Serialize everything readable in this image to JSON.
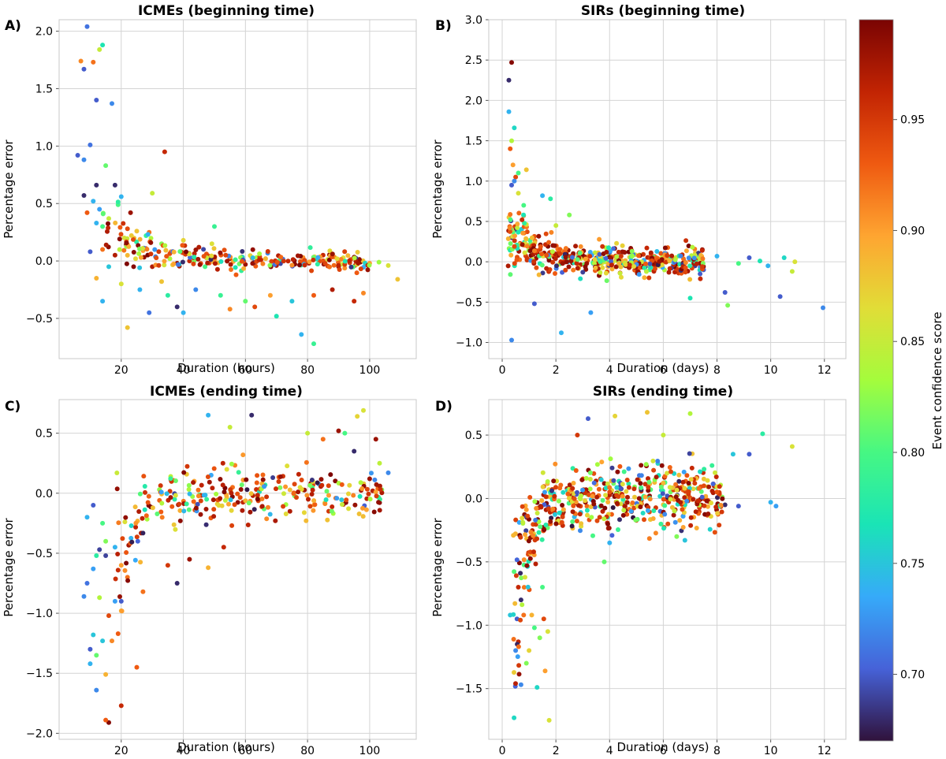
{
  "colorbar": {
    "label": "Event confidence score",
    "min": 0.67,
    "max": 0.995,
    "ticks": [
      0.7,
      0.75,
      0.8,
      0.85,
      0.9,
      0.95
    ],
    "tick_labels": [
      "0.70",
      "0.75",
      "0.80",
      "0.85",
      "0.90",
      "0.95"
    ]
  },
  "chart_data": [
    {
      "type": "scatter",
      "panel_label": "A)",
      "title": "ICMEs (beginning time)",
      "xlabel": "Duration (hours)",
      "ylabel": "Percentage error",
      "xlim": [
        0,
        115
      ],
      "ylim": [
        -0.85,
        2.1
      ],
      "xticks": [
        20,
        40,
        60,
        80,
        100
      ],
      "yticks": [
        -0.5,
        0.0,
        0.5,
        1.0,
        1.5,
        2.0
      ],
      "xtick_labels": [
        "20",
        "40",
        "60",
        "80",
        "100"
      ],
      "ytick_labels": [
        "−0.5",
        "0.0",
        "0.5",
        "1.0",
        "1.5",
        "2.0"
      ],
      "grid": true,
      "seed": 11,
      "points": [
        [
          9,
          2.04,
          0.71
        ],
        [
          14,
          1.88,
          0.77
        ],
        [
          7,
          1.74,
          0.91
        ],
        [
          11,
          1.73,
          0.92
        ],
        [
          13,
          1.84,
          0.85
        ],
        [
          8,
          1.67,
          0.7
        ],
        [
          12,
          1.4,
          0.7
        ],
        [
          17,
          1.37,
          0.72
        ],
        [
          34,
          0.95,
          0.96
        ],
        [
          10,
          1.01,
          0.71
        ],
        [
          6,
          0.92,
          0.7
        ],
        [
          8,
          0.88,
          0.72
        ],
        [
          15,
          0.83,
          0.81
        ],
        [
          12,
          0.66,
          0.68
        ],
        [
          18,
          0.66,
          0.68
        ],
        [
          20,
          0.56,
          0.74
        ],
        [
          30,
          0.59,
          0.85
        ],
        [
          8,
          0.57,
          0.68
        ],
        [
          11,
          0.52,
          0.74
        ],
        [
          19,
          0.49,
          0.8
        ],
        [
          13,
          0.45,
          0.73
        ],
        [
          9,
          0.42,
          0.93
        ],
        [
          23,
          0.42,
          0.98
        ],
        [
          16,
          0.37,
          0.85
        ],
        [
          12,
          0.33,
          0.74
        ],
        [
          14,
          0.3,
          0.8
        ],
        [
          22,
          0.28,
          0.94
        ],
        [
          25,
          0.26,
          0.88
        ],
        [
          28,
          0.22,
          0.79
        ],
        [
          21,
          0.2,
          0.86
        ],
        [
          10,
          0.08,
          0.7
        ],
        [
          27,
          0.09,
          0.9
        ],
        [
          33,
          0.15,
          0.82
        ],
        [
          36,
          0.08,
          0.91
        ],
        [
          40,
          0.18,
          0.87
        ],
        [
          45,
          0.12,
          0.97
        ],
        [
          50,
          0.3,
          0.79
        ],
        [
          14,
          0.1,
          0.92
        ],
        [
          18,
          0.05,
          0.97
        ],
        [
          24,
          -0.05,
          0.99
        ],
        [
          30,
          -0.05,
          0.97
        ],
        [
          38,
          -0.02,
          0.98
        ],
        [
          42,
          0.0,
          0.96
        ],
        [
          48,
          0.04,
          0.99
        ],
        [
          55,
          0.02,
          0.97
        ],
        [
          60,
          -0.03,
          0.98
        ],
        [
          65,
          0.01,
          0.96
        ],
        [
          70,
          -0.04,
          0.97
        ],
        [
          78,
          -0.02,
          0.99
        ],
        [
          85,
          0.05,
          0.96
        ],
        [
          90,
          -0.05,
          0.98
        ],
        [
          97,
          -0.01,
          0.99
        ],
        [
          100,
          -0.02,
          0.9
        ],
        [
          103,
          -0.01,
          0.83
        ],
        [
          109,
          -0.16,
          0.88
        ],
        [
          106,
          -0.04,
          0.86
        ],
        [
          20,
          -0.2,
          0.86
        ],
        [
          26,
          -0.25,
          0.74
        ],
        [
          35,
          -0.3,
          0.78
        ],
        [
          44,
          -0.25,
          0.72
        ],
        [
          52,
          -0.3,
          0.79
        ],
        [
          60,
          -0.35,
          0.81
        ],
        [
          68,
          -0.3,
          0.9
        ],
        [
          75,
          -0.35,
          0.75
        ],
        [
          82,
          -0.3,
          0.93
        ],
        [
          88,
          -0.25,
          0.97
        ],
        [
          95,
          -0.35,
          0.96
        ],
        [
          29,
          -0.45,
          0.71
        ],
        [
          22,
          -0.58,
          0.88
        ],
        [
          38,
          -0.4,
          0.68
        ],
        [
          55,
          -0.42,
          0.91
        ],
        [
          70,
          -0.48,
          0.77
        ],
        [
          78,
          -0.64,
          0.74
        ],
        [
          82,
          -0.72,
          0.79
        ],
        [
          98,
          -0.28,
          0.91
        ],
        [
          14,
          -0.35,
          0.74
        ],
        [
          40,
          -0.45,
          0.74
        ],
        [
          63,
          -0.4,
          0.94
        ],
        [
          57,
          -0.12,
          0.93
        ],
        [
          47,
          -0.05,
          0.8
        ],
        [
          16,
          -0.05,
          0.75
        ],
        [
          12,
          -0.15,
          0.89
        ],
        [
          33,
          -0.18,
          0.88
        ],
        [
          29,
          0.25,
          0.92
        ]
      ],
      "cloud": [
        {
          "n": 240,
          "xmin": 14,
          "xmax": 100,
          "scale": 0.07,
          "curve": 0.35,
          "xscale": 12,
          "xpow": 1.0
        }
      ]
    },
    {
      "type": "scatter",
      "panel_label": "B)",
      "title": "SIRs (beginning time)",
      "xlabel": "Duration (days)",
      "ylabel": "Percentage error",
      "xlim": [
        -0.5,
        12.8
      ],
      "ylim": [
        -1.2,
        3.0
      ],
      "xticks": [
        0,
        2,
        4,
        6,
        8,
        10,
        12
      ],
      "yticks": [
        -1.0,
        -0.5,
        0.0,
        0.5,
        1.0,
        1.5,
        2.0,
        2.5,
        3.0
      ],
      "xtick_labels": [
        "0",
        "2",
        "4",
        "6",
        "8",
        "10",
        "12"
      ],
      "ytick_labels": [
        "−1.0",
        "−0.5",
        "0.0",
        "0.5",
        "1.0",
        "1.5",
        "2.0",
        "2.5",
        "3.0"
      ],
      "grid": true,
      "seed": 23,
      "points": [
        [
          0.35,
          2.47,
          0.99
        ],
        [
          0.25,
          2.25,
          0.68
        ],
        [
          0.25,
          1.86,
          0.74
        ],
        [
          0.45,
          1.66,
          0.76
        ],
        [
          0.35,
          1.5,
          0.84
        ],
        [
          0.3,
          1.4,
          0.93
        ],
        [
          0.4,
          1.2,
          0.9
        ],
        [
          0.6,
          1.1,
          0.8
        ],
        [
          0.5,
          1.05,
          0.94
        ],
        [
          0.9,
          1.14,
          0.88
        ],
        [
          0.45,
          1.0,
          0.72
        ],
        [
          0.35,
          0.95,
          0.7
        ],
        [
          0.6,
          0.85,
          0.86
        ],
        [
          1.5,
          0.82,
          0.74
        ],
        [
          1.8,
          0.78,
          0.78
        ],
        [
          0.8,
          0.7,
          0.8
        ],
        [
          2.0,
          0.45,
          0.85
        ],
        [
          2.5,
          0.58,
          0.82
        ],
        [
          1.2,
          -0.52,
          0.7
        ],
        [
          2.2,
          -0.88,
          0.74
        ],
        [
          0.35,
          -0.97,
          0.72
        ],
        [
          3.3,
          -0.63,
          0.73
        ],
        [
          10.35,
          -0.43,
          0.7
        ],
        [
          11.95,
          -0.57,
          0.72
        ],
        [
          8.3,
          -0.38,
          0.7
        ],
        [
          10.9,
          0.0,
          0.86
        ],
        [
          10.8,
          -0.12,
          0.85
        ],
        [
          10.5,
          0.05,
          0.76
        ],
        [
          9.9,
          -0.05,
          0.74
        ],
        [
          9.6,
          0.01,
          0.77
        ],
        [
          9.2,
          0.05,
          0.7
        ],
        [
          8.8,
          -0.02,
          0.8
        ],
        [
          8.0,
          0.07,
          0.74
        ],
        [
          7.5,
          -0.1,
          0.7
        ],
        [
          7.2,
          0.02,
          0.8
        ],
        [
          6.5,
          -0.05,
          0.88
        ],
        [
          8.4,
          -0.54,
          0.82
        ],
        [
          7.0,
          -0.45,
          0.77
        ],
        [
          6.8,
          0.0,
          0.7
        ],
        [
          5.5,
          -0.1,
          0.8
        ]
      ],
      "cloud": [
        {
          "n": 520,
          "xmin": 0.2,
          "xmax": 7.5,
          "scale": 0.14,
          "curve": 0.55,
          "xscale": 0.9,
          "xpow": 1.0
        }
      ]
    },
    {
      "type": "scatter",
      "panel_label": "C)",
      "title": "ICMEs (ending time)",
      "xlabel": "Duration (hours)",
      "ylabel": "Percentage error",
      "xlim": [
        0,
        115
      ],
      "ylim": [
        -2.05,
        0.78
      ],
      "xticks": [
        20,
        40,
        60,
        80,
        100
      ],
      "yticks": [
        -2.0,
        -1.5,
        -1.0,
        -0.5,
        0.0,
        0.5
      ],
      "xtick_labels": [
        "20",
        "40",
        "60",
        "80",
        "100"
      ],
      "ytick_labels": [
        "−2.0",
        "−1.5",
        "−1.0",
        "−0.5",
        "0.0",
        "0.5"
      ],
      "grid": true,
      "seed": 37,
      "points": [
        [
          16,
          -1.91,
          0.99
        ],
        [
          15,
          -1.89,
          0.93
        ],
        [
          20,
          -1.77,
          0.96
        ],
        [
          15,
          -1.51,
          0.89
        ],
        [
          25,
          -1.45,
          0.93
        ],
        [
          12,
          -1.64,
          0.72
        ],
        [
          17,
          -1.23,
          0.91
        ],
        [
          10,
          -1.42,
          0.74
        ],
        [
          12,
          -1.35,
          0.81
        ],
        [
          10,
          -1.3,
          0.7
        ],
        [
          14,
          -1.23,
          0.75
        ],
        [
          11,
          -1.18,
          0.75
        ],
        [
          19,
          -1.17,
          0.93
        ],
        [
          16,
          -1.02,
          0.94
        ],
        [
          20,
          -0.9,
          0.7
        ],
        [
          18,
          -0.9,
          0.73
        ],
        [
          13,
          -0.87,
          0.84
        ],
        [
          8,
          -0.86,
          0.72
        ],
        [
          20,
          -0.98,
          0.89
        ],
        [
          9,
          -0.75,
          0.71
        ],
        [
          11,
          -0.63,
          0.73
        ],
        [
          12,
          -0.52,
          0.78
        ],
        [
          15,
          -0.52,
          0.69
        ],
        [
          13,
          -0.47,
          0.69
        ],
        [
          18,
          -0.45,
          0.74
        ],
        [
          9,
          -0.2,
          0.74
        ],
        [
          11,
          -0.1,
          0.7
        ],
        [
          14,
          -0.25,
          0.8
        ],
        [
          15,
          -0.4,
          0.82
        ],
        [
          20,
          -0.6,
          0.9
        ],
        [
          22,
          -0.7,
          0.92
        ],
        [
          27,
          -0.82,
          0.92
        ],
        [
          35,
          -0.6,
          0.95
        ],
        [
          38,
          -0.75,
          0.68
        ],
        [
          42,
          -0.55,
          0.98
        ],
        [
          48,
          -0.62,
          0.89
        ],
        [
          53,
          -0.45,
          0.96
        ],
        [
          48,
          0.65,
          0.74
        ],
        [
          55,
          0.55,
          0.85
        ],
        [
          62,
          0.65,
          0.68
        ],
        [
          98,
          0.69,
          0.86
        ],
        [
          96,
          0.64,
          0.87
        ],
        [
          102,
          0.45,
          0.98
        ],
        [
          106,
          0.17,
          0.72
        ],
        [
          100,
          0.12,
          0.98
        ],
        [
          90,
          0.52,
          0.98
        ],
        [
          92,
          0.5,
          0.8
        ],
        [
          95,
          0.35,
          0.68
        ],
        [
          85,
          0.45,
          0.92
        ],
        [
          80,
          0.5,
          0.85
        ]
      ],
      "cloud": [
        {
          "n": 300,
          "xmin": 18,
          "xmax": 104,
          "scale": 0.2,
          "curve": -0.9,
          "xscale": 6,
          "xpow": 1.0
        }
      ]
    },
    {
      "type": "scatter",
      "panel_label": "D)",
      "title": "SIRs (ending time)",
      "xlabel": "Duration (days)",
      "ylabel": "Percentage error",
      "xlim": [
        -0.5,
        12.8
      ],
      "ylim": [
        -1.9,
        0.78
      ],
      "xticks": [
        0,
        2,
        4,
        6,
        8,
        10,
        12
      ],
      "yticks": [
        -1.5,
        -1.0,
        -0.5,
        0.0,
        0.5
      ],
      "xtick_labels": [
        "0",
        "2",
        "4",
        "6",
        "8",
        "10",
        "12"
      ],
      "ytick_labels": [
        "−1.5",
        "−1.0",
        "−0.5",
        "0.0",
        "0.5"
      ],
      "grid": true,
      "seed": 51,
      "points": [
        [
          1.75,
          -1.75,
          0.86
        ],
        [
          0.7,
          -1.47,
          0.72
        ],
        [
          1.3,
          -1.49,
          0.76
        ],
        [
          1.6,
          -1.36,
          0.9
        ],
        [
          0.9,
          -1.3,
          0.82
        ],
        [
          0.5,
          -1.2,
          0.72
        ],
        [
          1.0,
          -1.2,
          0.87
        ],
        [
          1.4,
          -1.1,
          0.82
        ],
        [
          1.2,
          -1.02,
          0.8
        ],
        [
          1.7,
          -1.05,
          0.86
        ],
        [
          0.3,
          -0.92,
          0.75
        ],
        [
          0.55,
          -0.95,
          0.7
        ],
        [
          0.8,
          -0.92,
          0.92
        ],
        [
          1.1,
          -0.92,
          0.89
        ],
        [
          1.55,
          -0.95,
          0.94
        ],
        [
          0.7,
          -0.8,
          0.68
        ],
        [
          0.6,
          -0.7,
          0.96
        ],
        [
          1.5,
          -0.7,
          0.8
        ],
        [
          3.8,
          -0.5,
          0.81
        ],
        [
          4.0,
          -0.35,
          0.74
        ],
        [
          9.7,
          0.51,
          0.78
        ],
        [
          10.8,
          0.41,
          0.86
        ],
        [
          9.2,
          0.35,
          0.7
        ],
        [
          8.6,
          0.35,
          0.75
        ],
        [
          10.0,
          -0.03,
          0.74
        ],
        [
          10.2,
          -0.06,
          0.73
        ],
        [
          8.8,
          -0.06,
          0.7
        ],
        [
          8.3,
          -0.05,
          0.68
        ],
        [
          7.0,
          0.67,
          0.84
        ],
        [
          5.4,
          0.68,
          0.88
        ],
        [
          4.2,
          0.65,
          0.87
        ],
        [
          3.2,
          0.63,
          0.7
        ],
        [
          2.8,
          0.5,
          0.95
        ],
        [
          6.0,
          0.5,
          0.85
        ],
        [
          6.5,
          -0.3,
          0.82
        ]
      ],
      "cloud": [
        {
          "n": 560,
          "xmin": 0.4,
          "xmax": 8.2,
          "scale": 0.22,
          "curve": -1.4,
          "xscale": 0.5,
          "xpow": 1.0
        }
      ]
    }
  ]
}
